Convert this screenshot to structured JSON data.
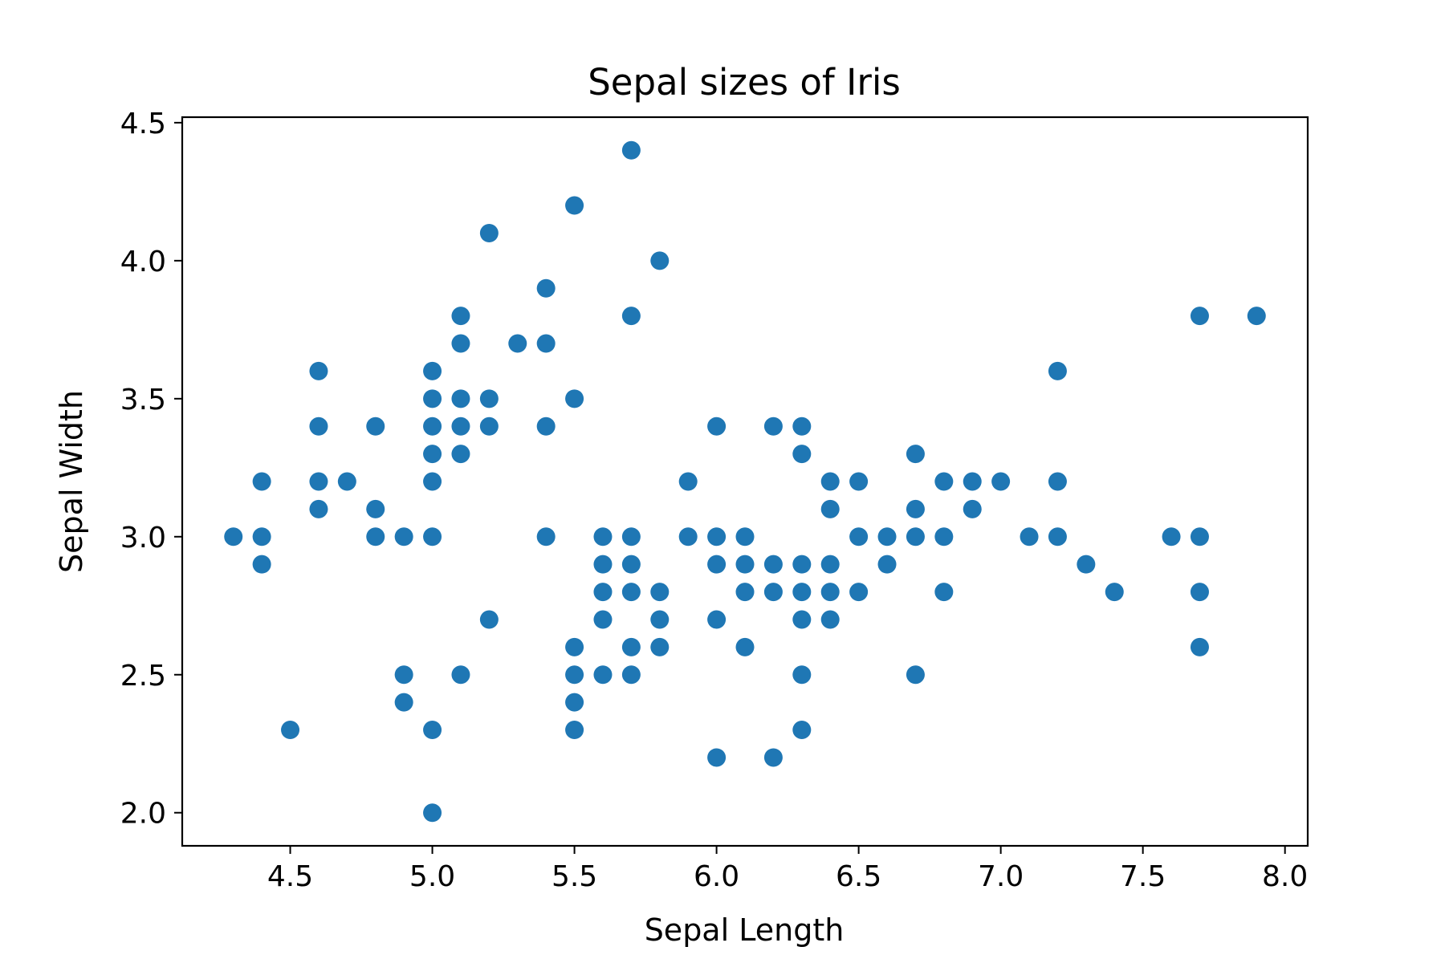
{
  "chart_data": {
    "type": "scatter",
    "title": "Sepal sizes of Iris",
    "xlabel": "Sepal Length",
    "ylabel": "Sepal Width",
    "xlim": [
      4.12,
      8.08
    ],
    "ylim": [
      1.88,
      4.52
    ],
    "xticks": [
      "4.5",
      "5.0",
      "5.5",
      "6.0",
      "6.5",
      "7.0",
      "7.5",
      "8.0"
    ],
    "yticks": [
      "2.0",
      "2.5",
      "3.0",
      "3.5",
      "4.0",
      "4.5"
    ],
    "grid": false,
    "marker_color": "#1f77b4",
    "series": [
      {
        "points": [
          [
            4.3,
            3.0
          ],
          [
            4.4,
            3.2
          ],
          [
            4.4,
            3.0
          ],
          [
            4.4,
            2.9
          ],
          [
            4.5,
            2.3
          ],
          [
            4.6,
            3.6
          ],
          [
            4.6,
            3.4
          ],
          [
            4.6,
            3.2
          ],
          [
            4.6,
            3.1
          ],
          [
            4.7,
            3.2
          ],
          [
            4.8,
            3.4
          ],
          [
            4.8,
            3.1
          ],
          [
            4.8,
            3.0
          ],
          [
            4.9,
            3.0
          ],
          [
            4.9,
            2.5
          ],
          [
            4.9,
            2.4
          ],
          [
            5.0,
            3.6
          ],
          [
            5.0,
            3.5
          ],
          [
            5.0,
            3.4
          ],
          [
            5.0,
            3.3
          ],
          [
            5.0,
            3.2
          ],
          [
            5.0,
            3.0
          ],
          [
            5.0,
            2.3
          ],
          [
            5.0,
            2.0
          ],
          [
            5.1,
            3.8
          ],
          [
            5.1,
            3.7
          ],
          [
            5.1,
            3.5
          ],
          [
            5.1,
            3.4
          ],
          [
            5.1,
            3.3
          ],
          [
            5.1,
            2.5
          ],
          [
            5.2,
            4.1
          ],
          [
            5.2,
            3.5
          ],
          [
            5.2,
            3.4
          ],
          [
            5.2,
            2.7
          ],
          [
            5.3,
            3.7
          ],
          [
            5.4,
            3.9
          ],
          [
            5.4,
            3.7
          ],
          [
            5.4,
            3.4
          ],
          [
            5.4,
            3.0
          ],
          [
            5.5,
            4.2
          ],
          [
            5.5,
            3.5
          ],
          [
            5.5,
            2.6
          ],
          [
            5.5,
            2.5
          ],
          [
            5.5,
            2.4
          ],
          [
            5.5,
            2.3
          ],
          [
            5.6,
            3.0
          ],
          [
            5.6,
            2.9
          ],
          [
            5.6,
            2.8
          ],
          [
            5.6,
            2.7
          ],
          [
            5.6,
            2.5
          ],
          [
            5.7,
            4.4
          ],
          [
            5.7,
            3.8
          ],
          [
            5.7,
            3.0
          ],
          [
            5.7,
            2.9
          ],
          [
            5.7,
            2.8
          ],
          [
            5.7,
            2.6
          ],
          [
            5.7,
            2.5
          ],
          [
            5.8,
            4.0
          ],
          [
            5.8,
            2.8
          ],
          [
            5.8,
            2.7
          ],
          [
            5.8,
            2.6
          ],
          [
            5.9,
            3.2
          ],
          [
            5.9,
            3.0
          ],
          [
            6.0,
            3.4
          ],
          [
            6.0,
            3.0
          ],
          [
            6.0,
            2.9
          ],
          [
            6.0,
            2.7
          ],
          [
            6.0,
            2.2
          ],
          [
            6.1,
            3.0
          ],
          [
            6.1,
            2.9
          ],
          [
            6.1,
            2.8
          ],
          [
            6.1,
            2.6
          ],
          [
            6.2,
            3.4
          ],
          [
            6.2,
            2.9
          ],
          [
            6.2,
            2.8
          ],
          [
            6.2,
            2.2
          ],
          [
            6.3,
            3.4
          ],
          [
            6.3,
            3.3
          ],
          [
            6.3,
            2.9
          ],
          [
            6.3,
            2.8
          ],
          [
            6.3,
            2.7
          ],
          [
            6.3,
            2.5
          ],
          [
            6.3,
            2.3
          ],
          [
            6.4,
            3.2
          ],
          [
            6.4,
            3.1
          ],
          [
            6.4,
            2.9
          ],
          [
            6.4,
            2.8
          ],
          [
            6.4,
            2.7
          ],
          [
            6.5,
            3.2
          ],
          [
            6.5,
            3.0
          ],
          [
            6.5,
            2.8
          ],
          [
            6.6,
            3.0
          ],
          [
            6.6,
            2.9
          ],
          [
            6.7,
            3.3
          ],
          [
            6.7,
            3.1
          ],
          [
            6.7,
            3.0
          ],
          [
            6.7,
            2.5
          ],
          [
            6.8,
            3.2
          ],
          [
            6.8,
            3.0
          ],
          [
            6.8,
            2.8
          ],
          [
            6.9,
            3.2
          ],
          [
            6.9,
            3.1
          ],
          [
            7.0,
            3.2
          ],
          [
            7.1,
            3.0
          ],
          [
            7.2,
            3.6
          ],
          [
            7.2,
            3.2
          ],
          [
            7.2,
            3.0
          ],
          [
            7.3,
            2.9
          ],
          [
            7.4,
            2.8
          ],
          [
            7.6,
            3.0
          ],
          [
            7.7,
            3.8
          ],
          [
            7.7,
            3.0
          ],
          [
            7.7,
            2.8
          ],
          [
            7.7,
            2.6
          ],
          [
            7.9,
            3.8
          ]
        ]
      }
    ]
  }
}
